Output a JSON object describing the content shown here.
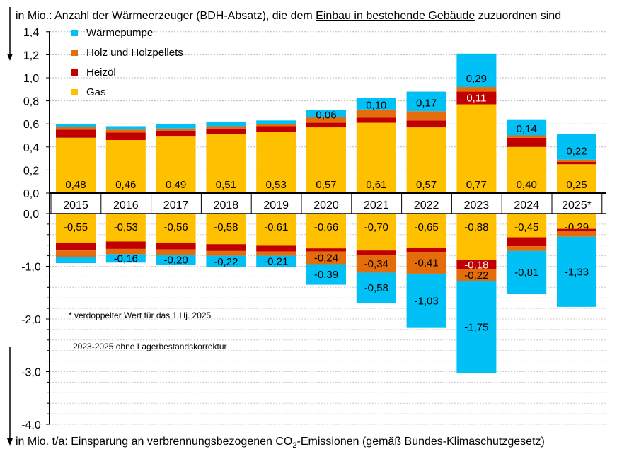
{
  "chart_data": [
    {
      "type": "bar",
      "stacked": true,
      "title_parts": [
        "in Mio.: Anzahl der Wärmeerzeuger  (BDH-Absatz),  die dem ",
        "Einbau in bestehende  Gebäude",
        " zuzuordnen sind"
      ],
      "categories": [
        "2015",
        "2016",
        "2017",
        "2018",
        "2019",
        "2020",
        "2021",
        "2022",
        "2023",
        "2024",
        "2025*"
      ],
      "ylim": [
        0,
        1.4
      ],
      "yticks": [
        "0,0",
        "0,2",
        "0,4",
        "0,6",
        "0,8",
        "1,0",
        "1,2",
        "1,4"
      ],
      "grid": true,
      "legend_position": "top-left",
      "series": [
        {
          "name": "Gas",
          "color": "#FFC000",
          "values": [
            0.48,
            0.46,
            0.49,
            0.51,
            0.53,
            0.57,
            0.61,
            0.57,
            0.77,
            0.4,
            0.25
          ],
          "labels": [
            "0,48",
            "0,46",
            "0,49",
            "0,51",
            "0,53",
            "0,57",
            "0,61",
            "0,57",
            "0,77",
            "0,40",
            "0,25"
          ]
        },
        {
          "name": "Heizöl",
          "color": "#C00000",
          "values": [
            0.07,
            0.065,
            0.05,
            0.05,
            0.05,
            0.04,
            0.045,
            0.06,
            0.11,
            0.08,
            0.02
          ],
          "labels": [
            null,
            null,
            null,
            null,
            null,
            null,
            null,
            null,
            "0,11",
            null,
            null
          ]
        },
        {
          "name": "Holz und Holzpellets",
          "color": "#E46C0A",
          "values": [
            0.025,
            0.025,
            0.02,
            0.02,
            0.015,
            0.05,
            0.07,
            0.08,
            0.04,
            0.02,
            0.02
          ],
          "labels": [
            null,
            null,
            null,
            null,
            null,
            null,
            null,
            null,
            null,
            null,
            null
          ]
        },
        {
          "name": "Wärmepumpe",
          "color": "#00C0F5",
          "values": [
            0.02,
            0.03,
            0.04,
            0.04,
            0.035,
            0.06,
            0.1,
            0.17,
            0.29,
            0.14,
            0.22
          ],
          "labels": [
            null,
            null,
            null,
            null,
            null,
            "0,06",
            "0,10",
            "0,17",
            "0,29",
            "0,14",
            "0,22"
          ]
        }
      ]
    },
    {
      "type": "bar",
      "stacked": true,
      "title_parts": [
        "in Mio. t/a: Einsparung an verbrennungsbezogenen  CO",
        "2",
        "-Emissionen  (gemäß Bundes-Klimaschutzgesetz)"
      ],
      "categories": [
        "2015",
        "2016",
        "2017",
        "2018",
        "2019",
        "2020",
        "2021",
        "2022",
        "2023",
        "2024",
        "2025*"
      ],
      "ylim": [
        -4.0,
        0
      ],
      "yticks": [
        "0,0",
        "-1,0",
        "-2,0",
        "-3,0",
        "-4,0"
      ],
      "grid": true,
      "series": [
        {
          "name": "Gas",
          "color": "#FFC000",
          "values": [
            -0.55,
            -0.53,
            -0.56,
            -0.58,
            -0.61,
            -0.66,
            -0.7,
            -0.65,
            -0.88,
            -0.45,
            -0.29
          ],
          "labels": [
            "-0,55",
            "-0,53",
            "-0,56",
            "-0,58",
            "-0,61",
            "-0,66",
            "-0,70",
            "-0,65",
            "-0,88",
            "-0,45",
            "-0,29"
          ]
        },
        {
          "name": "Heizöl",
          "color": "#C00000",
          "values": [
            -0.15,
            -0.14,
            -0.12,
            -0.13,
            -0.11,
            -0.06,
            -0.08,
            -0.08,
            -0.18,
            -0.17,
            -0.05
          ],
          "labels": [
            null,
            null,
            null,
            null,
            null,
            null,
            null,
            null,
            "-0,18",
            null,
            null
          ]
        },
        {
          "name": "Holz und Holzpellets",
          "color": "#E46C0A",
          "values": [
            -0.12,
            -0.1,
            -0.1,
            -0.09,
            -0.08,
            -0.24,
            -0.34,
            -0.41,
            -0.22,
            -0.09,
            -0.1
          ],
          "labels": [
            null,
            null,
            null,
            null,
            null,
            "-0,24",
            "-0,34",
            "-0,41",
            "-0,22",
            null,
            null
          ]
        },
        {
          "name": "Wärmepumpe",
          "color": "#00C0F5",
          "values": [
            -0.12,
            -0.16,
            -0.2,
            -0.22,
            -0.21,
            -0.39,
            -0.58,
            -1.03,
            -1.75,
            -0.81,
            -1.33
          ],
          "labels": [
            null,
            "-0,16",
            "-0,20",
            "-0,22",
            "-0,21",
            "-0,39",
            "-0,58",
            "-1,03",
            "-1,75",
            "-0,81",
            "-1,33"
          ]
        }
      ],
      "annotations": [
        "* verdoppelter  Wert für das 1.Hj. 2025",
        "2023-2025 ohne   Lagerbestandskorrektur"
      ]
    }
  ]
}
